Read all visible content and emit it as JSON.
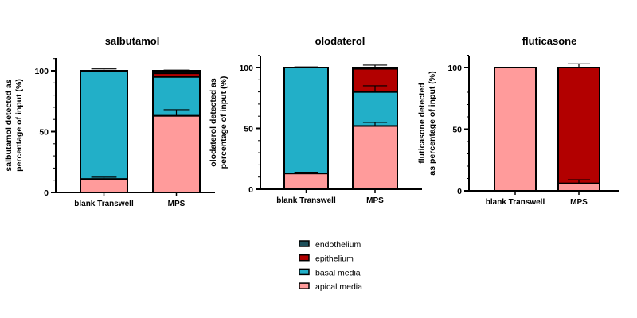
{
  "colors": {
    "endothelium": "#1d4f5a",
    "epithelium": "#b20000",
    "basal media": "#22afc8",
    "apical media": "#ff9b9b"
  },
  "legend": [
    "endothelium",
    "epithelium",
    "basal media",
    "apical media"
  ],
  "chart_data": [
    {
      "type": "bar",
      "stacked": true,
      "title": "salbutamol",
      "ylabel": [
        "salbutamol detected as",
        "percentage of input (%)"
      ],
      "ylim": [
        0,
        110
      ],
      "yticks": [
        "0",
        "50",
        "100"
      ],
      "categories": [
        "blank Transwell",
        "MPS"
      ],
      "series": [
        {
          "name": "apical media",
          "values": [
            11,
            63
          ],
          "err_top": [
            12.5,
            68
          ]
        },
        {
          "name": "basal media",
          "values": [
            89,
            32
          ],
          "err_top": [
            101.5,
            null
          ]
        },
        {
          "name": "epithelium",
          "values": [
            0,
            3
          ],
          "err_top": [
            null,
            null
          ]
        },
        {
          "name": "endothelium",
          "values": [
            0,
            2
          ],
          "err_top": [
            null,
            100.5
          ]
        }
      ]
    },
    {
      "type": "bar",
      "stacked": true,
      "title": "olodaterol",
      "ylabel": [
        "olodaterol detected as",
        "percentage of input (%)"
      ],
      "ylim": [
        0,
        110
      ],
      "yticks": [
        "0",
        "50",
        "100"
      ],
      "categories": [
        "blank Transwell",
        "MPS"
      ],
      "series": [
        {
          "name": "apical media",
          "values": [
            13,
            52
          ],
          "err_top": [
            14,
            55
          ]
        },
        {
          "name": "basal media",
          "values": [
            87,
            28
          ],
          "err_top": [
            100.5,
            85
          ]
        },
        {
          "name": "epithelium",
          "values": [
            0,
            19
          ],
          "err_top": [
            null,
            null
          ]
        },
        {
          "name": "endothelium",
          "values": [
            0,
            1
          ],
          "err_top": [
            null,
            102
          ]
        }
      ]
    },
    {
      "type": "bar",
      "stacked": true,
      "title": "fluticasone",
      "ylabel": [
        "fluticasone detected",
        "as percentage of input (%)"
      ],
      "ylim": [
        0,
        110
      ],
      "yticks": [
        "0",
        "50",
        "100"
      ],
      "categories": [
        "blank Transwell",
        "MPS"
      ],
      "series": [
        {
          "name": "apical media",
          "values": [
            100,
            6
          ],
          "err_top": [
            null,
            9
          ]
        },
        {
          "name": "basal media",
          "values": [
            0,
            0
          ],
          "err_top": [
            null,
            null
          ]
        },
        {
          "name": "epithelium",
          "values": [
            0,
            94
          ],
          "err_top": [
            null,
            103
          ]
        },
        {
          "name": "endothelium",
          "values": [
            0,
            0
          ],
          "err_top": [
            null,
            null
          ]
        }
      ]
    }
  ]
}
